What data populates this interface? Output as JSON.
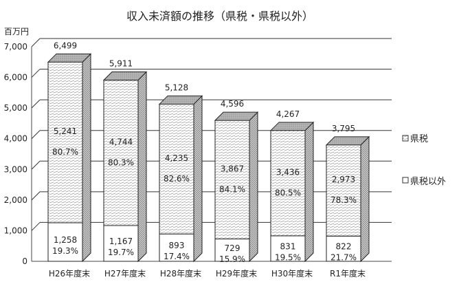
{
  "chart_data": {
    "type": "bar",
    "stacked": true,
    "style": "3d-columns",
    "title": "収入未済額の推移（県税・県税以外）",
    "unit_label": "百万円",
    "ylim": [
      0,
      7000
    ],
    "yticks": [
      "0",
      "1,000",
      "2,000",
      "3,000",
      "4,000",
      "5,000",
      "6,000",
      "7,000"
    ],
    "ytick_values": [
      0,
      1000,
      2000,
      3000,
      4000,
      5000,
      6000,
      7000
    ],
    "grid": true,
    "legend_position": "right",
    "categories": [
      "H26年度末",
      "H27年度末",
      "H28年度末",
      "H29年度末",
      "H30年度末",
      "R1年度末"
    ],
    "series": [
      {
        "name": "県税",
        "values": [
          1258,
          1167,
          893,
          729,
          831,
          822
        ],
        "labels": [
          "1,258",
          "1,167",
          "893",
          "729",
          "831",
          "822"
        ],
        "percent_labels": [
          "19.3%",
          "19.7%",
          "17.4%",
          "15.9%",
          "19.5%",
          "21.7%"
        ],
        "color": "#ffffff"
      },
      {
        "name": "県税以外",
        "values": [
          5241,
          4744,
          4235,
          3867,
          3436,
          2973
        ],
        "labels": [
          "5,241",
          "4,744",
          "4,235",
          "3,867",
          "3,436",
          "2,973"
        ],
        "percent_labels": [
          "80.7%",
          "80.3%",
          "82.6%",
          "84.1%",
          "80.5%",
          "78.3%"
        ],
        "color": "#dcdcdc"
      }
    ],
    "totals": [
      6499,
      5911,
      5128,
      4596,
      4267,
      3795
    ],
    "total_labels": [
      "6,499",
      "5,911",
      "5,128",
      "4,596",
      "4,267",
      "3,795"
    ]
  }
}
